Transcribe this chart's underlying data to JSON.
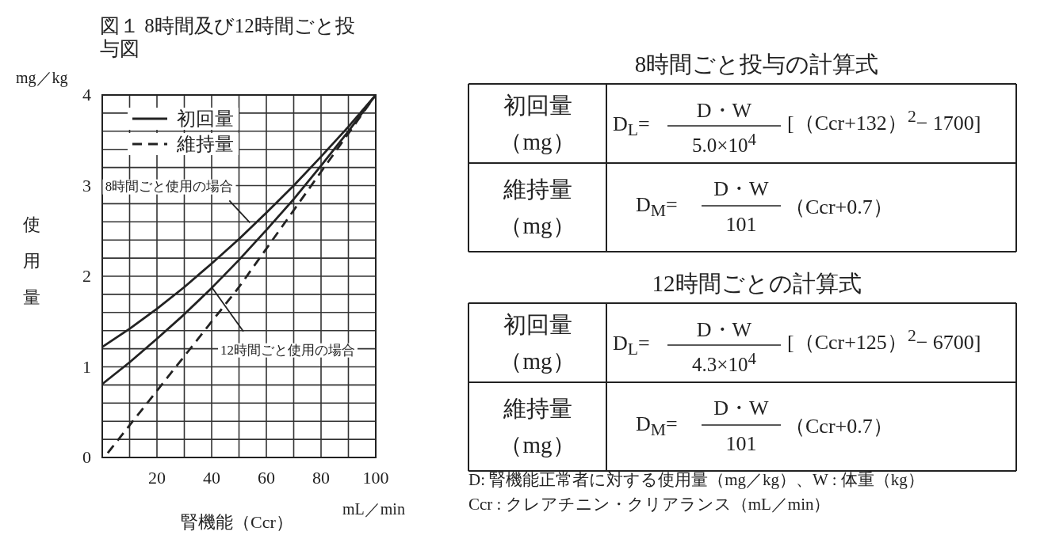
{
  "chart_data": [
    {
      "type": "line",
      "title": "図１ 8時間及び12時間ごと投与図",
      "xlabel": "腎機能（Ccr）",
      "ylabel": "使用量",
      "xlim": [
        0,
        100
      ],
      "ylim": [
        0,
        4
      ],
      "xticks": [
        {
          "value": 0,
          "label": null
        },
        {
          "value": 10,
          "label": null
        },
        20,
        {
          "value": 30,
          "label": null
        },
        40,
        {
          "value": 50,
          "label": null
        },
        60,
        {
          "value": 70,
          "label": null
        },
        80,
        {
          "value": 90,
          "label": null
        },
        100
      ],
      "yticks": [
        0,
        {
          "value": 0.2,
          "label": null
        },
        {
          "value": 0.4,
          "label": null
        },
        {
          "value": 0.6,
          "label": null
        },
        {
          "value": 0.8,
          "label": null
        },
        1,
        {
          "value": 1.2,
          "label": null
        },
        {
          "value": 1.4,
          "label": null
        },
        {
          "value": 1.6,
          "label": null
        },
        {
          "value": 1.8,
          "label": null
        },
        2,
        {
          "value": 2.2,
          "label": null
        },
        {
          "value": 2.4,
          "label": null
        },
        {
          "value": 2.6,
          "label": null
        },
        {
          "value": 2.8,
          "label": null
        },
        3,
        {
          "value": 3.2,
          "label": null
        },
        {
          "value": 3.4,
          "label": null
        },
        {
          "value": 3.6,
          "label": null
        },
        {
          "value": 3.8,
          "label": null
        },
        4
      ],
      "grid": true,
      "legend": "top left",
      "series": [
        {
          "name": "初回量",
          "color": "#222222",
          "line_style": "solid",
          "x": [
            0,
            10,
            20,
            30,
            40,
            50,
            60,
            70,
            80,
            90,
            100
          ],
          "values": [
            1.22,
            1.42,
            1.64,
            1.88,
            2.14,
            2.41,
            2.7,
            3.0,
            3.32,
            3.65,
            4.0
          ]
        },
        {
          "color": "#222222",
          "line_style": "solid",
          "x": [
            0,
            10,
            20,
            30,
            40,
            50,
            60,
            70,
            80,
            90,
            100
          ],
          "values": [
            0.81,
            1.05,
            1.31,
            1.58,
            1.87,
            2.18,
            2.51,
            2.85,
            3.22,
            3.6,
            4.0
          ]
        },
        {
          "name": "維持量",
          "color": "#222222",
          "line_style": "dashed",
          "x": [
            2,
            50,
            100
          ],
          "values": [
            0.05,
            1.88,
            4.0
          ]
        }
      ],
      "annotations": [
        {
          "text": "8時間ごと使用の場合",
          "x": 54,
          "y": 2.59
        },
        {
          "text": "12時間ごと使用の場合",
          "x": 40,
          "y": 1.88
        },
        "mg／kg",
        "mL／min"
      ]
    },
    {
      "type": "other",
      "title": "8時間ごと投与の計算式",
      "annotations": [
        "初回量",
        "（mg）",
        "D$_{L}$=",
        "D・W",
        "5.0×10$^{4}$",
        "[（Ccr+132）$^{2}$− 1700]",
        "維持量",
        "（mg）",
        "D$_{M}$=",
        "D・W",
        "101",
        "（Ccr+0.7）"
      ]
    },
    {
      "type": "other",
      "title": "12時間ごとの計算式",
      "annotations": [
        "初回量",
        "（mg）",
        "D$_{L}$=",
        "D・W",
        "4.3×10$^{4}$",
        "[（Ccr+125）$^{2}$− 6700]",
        "維持量",
        "（mg）",
        "D$_{M}$=",
        "D・W",
        "101",
        "（Ccr+0.7）",
        "D: 腎機能正常者に対する使用量（mg／kg）、W : 体重（kg）",
        "Ccr : クレアチニン・クリアランス（mL／min）"
      ]
    }
  ]
}
